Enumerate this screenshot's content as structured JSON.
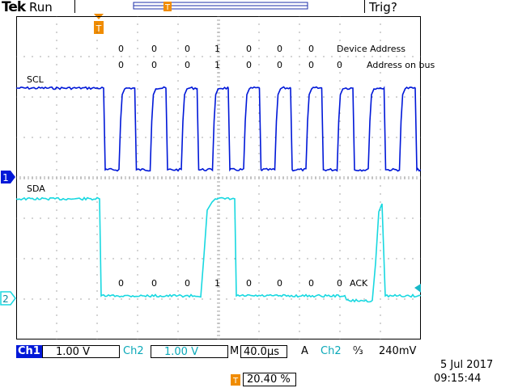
{
  "top_bar": {
    "brand": "Tek",
    "run_state": "Run",
    "trigger_state": "Trig?"
  },
  "annotations": {
    "device_address_bits": [
      "0",
      "0",
      "0",
      "1",
      "0",
      "0",
      "0"
    ],
    "device_address_label": "Device Address",
    "bus_address_bits": [
      "0",
      "0",
      "0",
      "1",
      "0",
      "0",
      "0",
      "0"
    ],
    "bus_address_label": "Address on bus",
    "sda_bits": [
      "0",
      "0",
      "0",
      "1",
      "0",
      "0",
      "0",
      "0"
    ],
    "ack_label": "ACK"
  },
  "traces": {
    "ch1_label": "SCL",
    "ch2_label": "SDA",
    "ch1_marker": "1",
    "ch2_marker": "2",
    "ch1_color": "#0018d8",
    "ch2_color": "#18d8e0",
    "trigger_marker_color": "#f08c00"
  },
  "bottom_bar": {
    "ch1_name": "Ch1",
    "ch1_scale": "1.00 V",
    "ch2_name": "Ch2",
    "ch2_scale": "1.00 V",
    "timebase_prefix": "M",
    "timebase": "40.0µs",
    "trigger_mode": "A",
    "trigger_source": "Ch2",
    "trigger_slope": "↉",
    "trigger_level": "240mV",
    "trigger_position": "20.40 %",
    "date": "5 Jul  2017",
    "time": "09:15:44"
  }
}
